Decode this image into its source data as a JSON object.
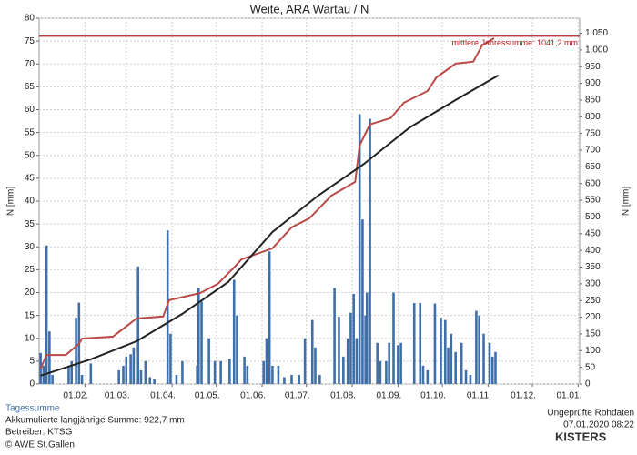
{
  "chart_data": {
    "type": "bar-line",
    "title": "Weite, ARA Wartau / N",
    "y_label": "N [mm]",
    "y2_label": "N [mm]",
    "xlim": [
      0,
      366
    ],
    "xticks": [
      {
        "value": 31,
        "label": "01.02."
      },
      {
        "value": 59,
        "label": "01.03."
      },
      {
        "value": 90,
        "label": "01.04."
      },
      {
        "value": 120,
        "label": "01.05."
      },
      {
        "value": 151,
        "label": "01.06."
      },
      {
        "value": 181,
        "label": "01.07."
      },
      {
        "value": 212,
        "label": "01.08."
      },
      {
        "value": 243,
        "label": "01.09."
      },
      {
        "value": 273,
        "label": "01.10."
      },
      {
        "value": 304,
        "label": "01.11."
      },
      {
        "value": 334,
        "label": "01.12."
      },
      {
        "value": 365,
        "label": "01.01."
      }
    ],
    "ylim": [
      0,
      80
    ],
    "yticks": [
      0,
      5,
      10,
      15,
      20,
      25,
      30,
      35,
      40,
      45,
      50,
      55,
      60,
      65,
      70,
      75,
      80
    ],
    "y2lim": [
      0,
      1095
    ],
    "y2ticks": [
      0,
      50,
      100,
      150,
      200,
      250,
      300,
      350,
      400,
      450,
      500,
      550,
      600,
      650,
      700,
      750,
      800,
      850,
      900,
      950,
      {
        "value": 1000,
        "label": "1.000"
      },
      {
        "value": 1050,
        "label": "1.050"
      }
    ],
    "grid": true,
    "series": [
      {
        "name": "Tagessumme",
        "kind": "bar",
        "axis": "y",
        "color": "#3f6fa8",
        "x": [
          1,
          3,
          5,
          7,
          9,
          20,
          22,
          25,
          27,
          29,
          35,
          54,
          57,
          59,
          62,
          64,
          67,
          69,
          72,
          75,
          78,
          87,
          89,
          93,
          97,
          107,
          108,
          110,
          115,
          119,
          123,
          129,
          132,
          134,
          139,
          141,
          152,
          154,
          156,
          158,
          162,
          166,
          171,
          176,
          180,
          185,
          187,
          190,
          200,
          203,
          206,
          209,
          211,
          213,
          215,
          217,
          219,
          221,
          222,
          224,
          229,
          231,
          235,
          237,
          240,
          243,
          245,
          254,
          258,
          260,
          263,
          268,
          272,
          275,
          277,
          279,
          282,
          286,
          289,
          292,
          296,
          298,
          301,
          305,
          307,
          309
        ],
        "values": [
          6.8,
          4,
          30.3,
          11.5,
          2,
          4,
          5,
          14.5,
          17.8,
          2,
          4.5,
          3,
          4,
          6,
          6.5,
          8,
          25.7,
          3,
          5,
          1.5,
          1,
          33.6,
          11,
          2,
          5,
          4,
          21,
          18,
          10,
          5,
          5,
          5.5,
          22.8,
          15,
          6,
          4,
          5,
          10,
          29,
          4,
          4,
          1.5,
          2,
          2,
          10,
          14,
          8,
          2,
          21,
          14.7,
          6,
          10,
          15.6,
          19.7,
          10,
          59,
          36,
          15,
          20,
          58,
          9,
          5,
          5,
          9,
          20,
          8.5,
          9,
          17.7,
          17.7,
          4,
          3,
          17.6,
          14.5,
          14,
          8,
          11,
          7,
          9,
          3,
          2,
          16,
          15,
          11,
          9,
          6,
          7
        ]
      },
      {
        "kind": "line",
        "axis": "y2",
        "color": "#b94a48",
        "x": [
          1,
          5,
          18,
          27,
          29,
          50,
          66,
          84,
          88,
          109,
          121,
          132,
          137,
          158,
          171,
          183,
          198,
          214,
          217,
          224,
          238,
          247,
          263,
          269,
          282,
          294,
          300,
          308
        ],
        "values": [
          46,
          87,
          87,
          120,
          136,
          142,
          196,
          202,
          251,
          272,
          300,
          349,
          373,
          406,
          469,
          496,
          564,
          605,
          714,
          777,
          796,
          842,
          877,
          918,
          959,
          965,
          1014,
          1035
        ]
      },
      {
        "name": "Akkumulierte langjährige Summe: 922,7 mm",
        "kind": "line",
        "axis": "y2",
        "color": "#222222",
        "x": [
          1,
          35,
          66,
          97,
          128,
          158,
          189,
          220,
          251,
          282,
          311
        ],
        "values": [
          25,
          74,
          128,
          210,
          305,
          455,
          564,
          659,
          768,
          850,
          924
        ]
      }
    ],
    "reference": {
      "value": 1041.2,
      "axis": "y2",
      "label": "mittlere Jahressumme: 1041,2 mm",
      "color": "#b22222"
    },
    "notes": [
      "Betreiber: KTSG",
      "© AWE St.Gallen"
    ],
    "status": [
      "Ungeprüfte Rohdaten",
      "07.01.2020 08:22"
    ],
    "brand": "KISTERS"
  }
}
